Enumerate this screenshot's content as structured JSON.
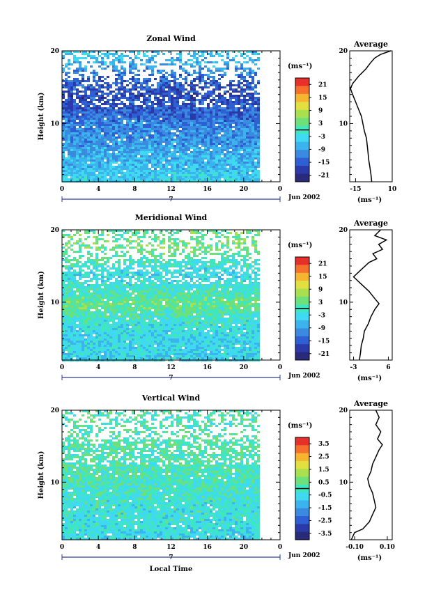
{
  "chart_data": [
    {
      "type": "heatmap",
      "title": "Zonal Wind",
      "ylabel": "Height (km)",
      "xlabel": "",
      "x_ticks": [
        "0",
        "4",
        "8",
        "12",
        "16",
        "20",
        "0"
      ],
      "y_ticks": [
        "10",
        "20"
      ],
      "xlim": [
        0,
        24
      ],
      "ylim": [
        2,
        20
      ],
      "data_end_hour": 21.5,
      "date_label": "Jun 2002",
      "day_label": "7",
      "colorbar": {
        "unit": "(ms⁻¹)",
        "ticks": [
          "21",
          "15",
          "9",
          "3",
          "-3",
          "-9",
          "-15",
          "-21"
        ],
        "range": [
          -24,
          24
        ],
        "zero_line": true
      },
      "field_profile": [
        {
          "h": 2,
          "v": -4
        },
        {
          "h": 4,
          "v": -6
        },
        {
          "h": 6,
          "v": -8
        },
        {
          "h": 8,
          "v": -10
        },
        {
          "h": 10,
          "v": -12
        },
        {
          "h": 12,
          "v": -15
        },
        {
          "h": 14,
          "v": -17
        },
        {
          "h": 16,
          "v": -15
        },
        {
          "h": 18,
          "v": -9
        },
        {
          "h": 19.5,
          "v": -6
        }
      ],
      "average_profile": {
        "title": "Average",
        "xlabel": "(ms⁻¹)",
        "x_ticks": [
          "-15",
          "10"
        ],
        "y_ticks": [
          "10",
          "20"
        ],
        "xlim": [
          -19,
          10
        ],
        "ylim": [
          2,
          20
        ],
        "points": [
          {
            "h": 2,
            "v": -4
          },
          {
            "h": 3,
            "v": -4.5
          },
          {
            "h": 4,
            "v": -5.2
          },
          {
            "h": 5,
            "v": -6
          },
          {
            "h": 6,
            "v": -6.5
          },
          {
            "h": 7,
            "v": -7
          },
          {
            "h": 8,
            "v": -7.6
          },
          {
            "h": 9,
            "v": -9
          },
          {
            "h": 10,
            "v": -10
          },
          {
            "h": 11,
            "v": -11
          },
          {
            "h": 12,
            "v": -13
          },
          {
            "h": 13,
            "v": -15
          },
          {
            "h": 14,
            "v": -17
          },
          {
            "h": 14.8,
            "v": -18.5
          },
          {
            "h": 15.5,
            "v": -17
          },
          {
            "h": 16.5,
            "v": -13
          },
          {
            "h": 17.5,
            "v": -8
          },
          {
            "h": 18.3,
            "v": -5
          },
          {
            "h": 19,
            "v": -2
          },
          {
            "h": 19.5,
            "v": 2
          },
          {
            "h": 20,
            "v": 9
          }
        ]
      }
    },
    {
      "type": "heatmap",
      "title": "Meridional Wind",
      "ylabel": "Height (km)",
      "xlabel": "",
      "x_ticks": [
        "0",
        "4",
        "8",
        "12",
        "16",
        "20",
        "0"
      ],
      "y_ticks": [
        "10",
        "20"
      ],
      "xlim": [
        0,
        24
      ],
      "ylim": [
        2,
        20
      ],
      "data_end_hour": 21.5,
      "date_label": "Jun 2002",
      "day_label": "7",
      "colorbar": {
        "unit": "(ms⁻¹)",
        "ticks": [
          "21",
          "15",
          "9",
          "3",
          "-3",
          "-9",
          "-15",
          "-21"
        ],
        "range": [
          -24,
          24
        ],
        "zero_line": true
      },
      "field_profile": [
        {
          "h": 2,
          "v": -4
        },
        {
          "h": 4,
          "v": -4
        },
        {
          "h": 6,
          "v": -3
        },
        {
          "h": 8,
          "v": -1
        },
        {
          "h": 10,
          "v": 3
        },
        {
          "h": 12,
          "v": -1
        },
        {
          "h": 14,
          "v": -3
        },
        {
          "h": 16,
          "v": 0
        },
        {
          "h": 18,
          "v": 4
        },
        {
          "h": 19.5,
          "v": 2
        }
      ],
      "average_profile": {
        "title": "Average",
        "xlabel": "(ms⁻¹)",
        "x_ticks": [
          "-3",
          "6"
        ],
        "y_ticks": [
          "10",
          "20"
        ],
        "xlim": [
          -4,
          7
        ],
        "ylim": [
          2,
          20
        ],
        "points": [
          {
            "h": 2,
            "v": -1.5
          },
          {
            "h": 3,
            "v": -1.2
          },
          {
            "h": 4,
            "v": -1
          },
          {
            "h": 5,
            "v": -0.5
          },
          {
            "h": 6,
            "v": -0.2
          },
          {
            "h": 7,
            "v": 0.8
          },
          {
            "h": 8,
            "v": 1.5
          },
          {
            "h": 9,
            "v": 2.5
          },
          {
            "h": 9.8,
            "v": 3.6
          },
          {
            "h": 10.5,
            "v": 2.5
          },
          {
            "h": 11.5,
            "v": 1
          },
          {
            "h": 12.5,
            "v": -1
          },
          {
            "h": 13.5,
            "v": -3
          },
          {
            "h": 14.5,
            "v": -1
          },
          {
            "h": 15.5,
            "v": 1
          },
          {
            "h": 16,
            "v": 3
          },
          {
            "h": 16.7,
            "v": 2
          },
          {
            "h": 17.3,
            "v": 4.5
          },
          {
            "h": 18,
            "v": 3.5
          },
          {
            "h": 18.6,
            "v": 5.5
          },
          {
            "h": 19.2,
            "v": 2.5
          },
          {
            "h": 20,
            "v": 4
          }
        ]
      }
    },
    {
      "type": "heatmap",
      "title": "Vertical Wind",
      "ylabel": "Height (km)",
      "xlabel": "Local Time",
      "x_ticks": [
        "0",
        "4",
        "8",
        "12",
        "16",
        "20",
        "0"
      ],
      "y_ticks": [
        "10",
        "20"
      ],
      "xlim": [
        0,
        24
      ],
      "ylim": [
        2,
        20
      ],
      "data_end_hour": 21.5,
      "date_label": "Jun 2002",
      "day_label": "7",
      "colorbar": {
        "unit": "(ms⁻¹)",
        "ticks": [
          "3.5",
          "2.5",
          "1.5",
          "0.5",
          "-0.5",
          "-1.5",
          "-2.5",
          "-3.5"
        ],
        "range": [
          -4,
          4
        ],
        "zero_line": true
      },
      "field_profile": [
        {
          "h": 2,
          "v": -0.6
        },
        {
          "h": 4,
          "v": -0.4
        },
        {
          "h": 6,
          "v": -0.3
        },
        {
          "h": 8,
          "v": -0.2
        },
        {
          "h": 10,
          "v": 0
        },
        {
          "h": 12,
          "v": 0.1
        },
        {
          "h": 14,
          "v": 0.1
        },
        {
          "h": 16,
          "v": 0.2
        },
        {
          "h": 18,
          "v": 0.1
        },
        {
          "h": 19.5,
          "v": 0.1
        }
      ],
      "average_profile": {
        "title": "Average",
        "xlabel": "(ms⁻¹)",
        "x_ticks": [
          "-0.10",
          "0.10"
        ],
        "y_ticks": [
          "10",
          "20"
        ],
        "xlim": [
          -0.13,
          0.13
        ],
        "ylim": [
          2,
          20
        ],
        "points": [
          {
            "h": 2,
            "v": -0.12
          },
          {
            "h": 3,
            "v": -0.1
          },
          {
            "h": 3.5,
            "v": -0.05
          },
          {
            "h": 4.5,
            "v": -0.01
          },
          {
            "h": 5.5,
            "v": 0.01
          },
          {
            "h": 6.5,
            "v": 0.03
          },
          {
            "h": 7.5,
            "v": 0.02
          },
          {
            "h": 8.5,
            "v": 0.01
          },
          {
            "h": 9.5,
            "v": -0.01
          },
          {
            "h": 10.5,
            "v": -0.02
          },
          {
            "h": 11.5,
            "v": 0
          },
          {
            "h": 12.5,
            "v": 0.01
          },
          {
            "h": 13.5,
            "v": 0.03
          },
          {
            "h": 14.5,
            "v": 0.05
          },
          {
            "h": 15.2,
            "v": 0.07
          },
          {
            "h": 16,
            "v": 0.04
          },
          {
            "h": 17,
            "v": 0.06
          },
          {
            "h": 18,
            "v": 0.03
          },
          {
            "h": 19,
            "v": 0.05
          },
          {
            "h": 20,
            "v": 0.03
          }
        ]
      }
    }
  ]
}
